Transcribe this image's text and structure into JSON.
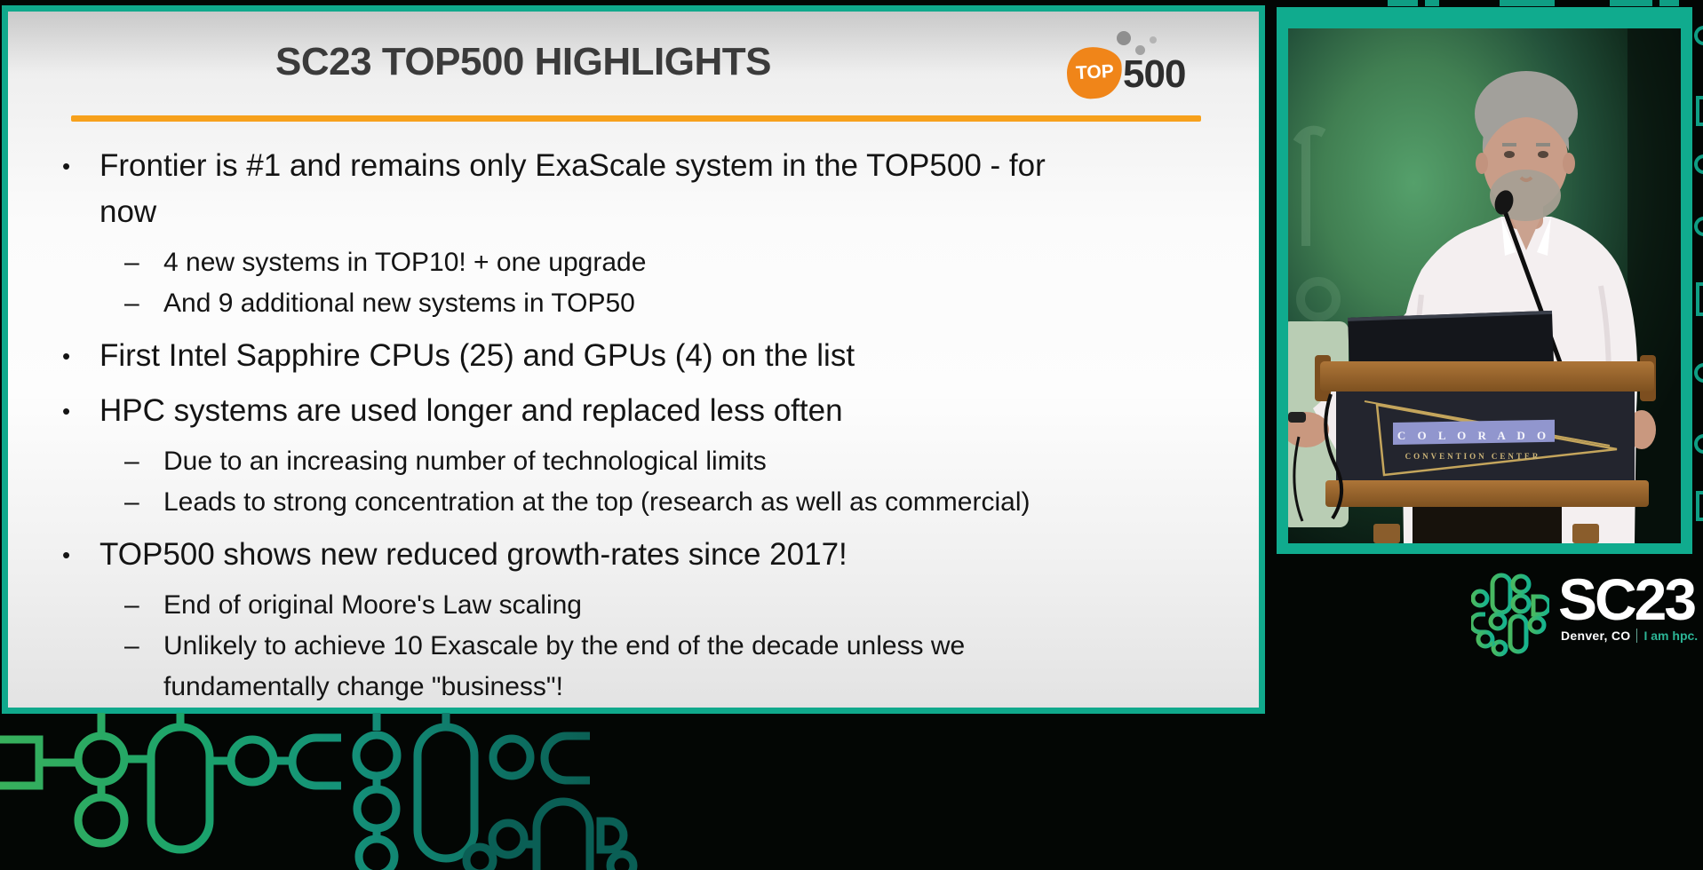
{
  "slide": {
    "title": "SC23 TOP500 HIGHLIGHTS",
    "top500_logo": {
      "top": "TOP",
      "number": "500"
    },
    "bullet_markers": {
      "1": "•",
      "2": "–"
    },
    "bullets": [
      {
        "level": 1,
        "lines": [
          "Frontier is #1 and remains only ExaScale system in the TOP500 - for",
          "now"
        ]
      },
      {
        "level": 2,
        "lines": [
          "4 new systems in TOP10! + one upgrade"
        ]
      },
      {
        "level": 2,
        "lines": [
          "And 9 additional new systems in TOP50"
        ]
      },
      {
        "level": 1,
        "lines": [
          "First Intel Sapphire CPUs (25) and GPUs (4) on the list"
        ]
      },
      {
        "level": 1,
        "lines": [
          "HPC systems are used longer and replaced less often"
        ]
      },
      {
        "level": 2,
        "lines": [
          "Due to an increasing number of technological limits"
        ]
      },
      {
        "level": 2,
        "lines": [
          "Leads to strong concentration at the top (research as well as commercial)"
        ]
      },
      {
        "level": 1,
        "lines": [
          "TOP500 shows new reduced growth-rates since 2017!"
        ]
      },
      {
        "level": 2,
        "lines": [
          "End of original Moore's Law scaling"
        ]
      },
      {
        "level": 2,
        "lines": [
          "Unlikely to achieve 10 Exascale by the end of the decade unless we",
          "fundamentally change \"business\"!"
        ]
      }
    ]
  },
  "video": {
    "podium_sign": {
      "line1": "C O L O R A D O",
      "line2": "CONVENTION CENTER"
    }
  },
  "branding": {
    "conference": "SC23",
    "location": "Denver, CO",
    "tagline": "I am hpc."
  },
  "colors": {
    "accent_teal": "#10ab8e",
    "accent_orange": "#f7a11c",
    "top500_orange": "#f08519",
    "sc_green": "#2db389",
    "slide_title": "#3b3b3b",
    "body_text": "#141414",
    "podium_purple": "#9196ce",
    "podium_gold": "#c4a55c"
  }
}
